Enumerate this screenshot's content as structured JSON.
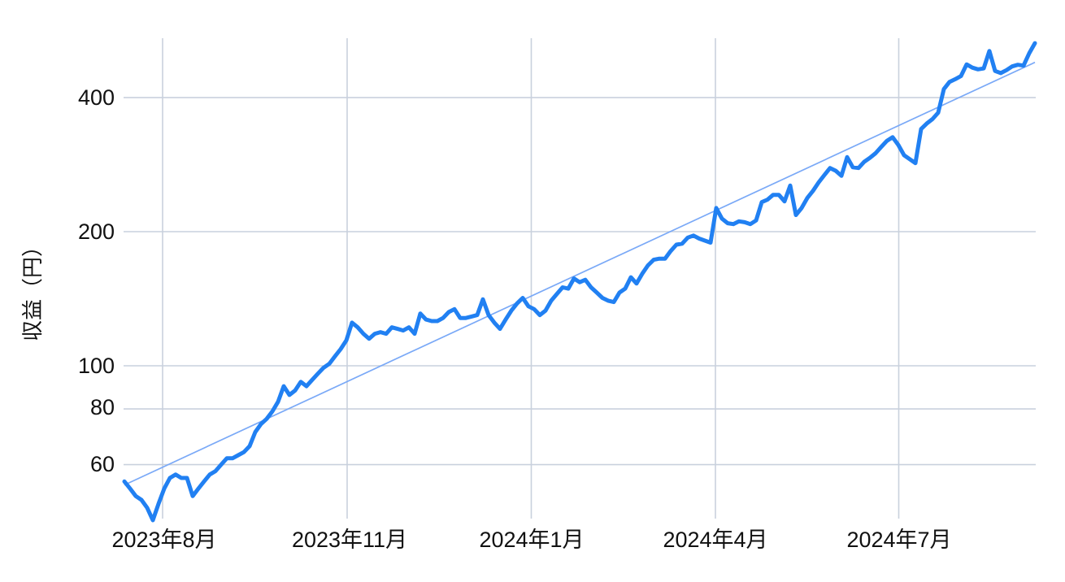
{
  "chart_data": {
    "type": "line",
    "title": "",
    "xlabel": "",
    "ylabel": "収益（円）",
    "y_scale": "log",
    "grid": true,
    "legend_position": "none",
    "y_ticks": [
      "400",
      "200",
      "100",
      "80",
      "60"
    ],
    "y_tick_values": [
      400,
      200,
      100,
      80,
      60
    ],
    "x_tick_labels": [
      "2023年8月",
      "2023年11月",
      "2024年1月",
      "2024年4月",
      "2024年7月"
    ],
    "y_axis_range": [
      45,
      544
    ],
    "colors": {
      "series": "#2180f2",
      "trendline": "#7aa9f7",
      "gridline": "#c9d1dd",
      "label_text": "#111111",
      "background": "#ffffff"
    },
    "series": [
      {
        "name": "収益",
        "color": "#2180f2",
        "values": [
          55,
          53,
          51,
          50,
          48,
          45,
          49,
          53,
          56,
          57,
          56,
          56,
          51,
          53,
          55,
          57,
          58,
          60,
          62,
          62,
          63,
          64,
          66,
          71,
          74,
          76,
          79,
          83,
          90,
          86,
          88,
          92,
          90,
          93,
          96,
          99,
          101,
          105,
          109,
          114,
          125,
          122,
          118,
          115,
          118,
          119,
          118,
          122,
          121,
          120,
          122,
          118,
          131,
          127,
          126,
          126,
          128,
          132,
          134,
          128,
          128,
          129,
          130,
          141,
          130,
          125,
          121,
          127,
          133,
          138,
          142,
          136,
          134,
          130,
          133,
          140,
          145,
          150,
          149,
          157,
          154,
          156,
          150,
          146,
          142,
          140,
          139,
          146,
          149,
          158,
          153,
          161,
          168,
          173,
          174,
          174,
          181,
          187,
          188,
          194,
          196,
          193,
          191,
          189,
          226,
          214,
          209,
          208,
          211,
          210,
          208,
          212,
          233,
          236,
          242,
          242,
          234,
          254,
          218,
          226,
          238,
          247,
          258,
          268,
          278,
          274,
          267,
          294,
          279,
          278,
          287,
          293,
          300,
          310,
          320,
          326,
          313,
          297,
          291,
          285,
          340,
          350,
          358,
          370,
          418,
          434,
          440,
          447,
          475,
          467,
          463,
          465,
          509,
          459,
          454,
          461,
          470,
          474,
          472,
          503,
          530
        ]
      }
    ],
    "trendline": {
      "type": "exponential",
      "color": "#7aa9f7",
      "start_value": 54,
      "end_value": 480
    }
  }
}
